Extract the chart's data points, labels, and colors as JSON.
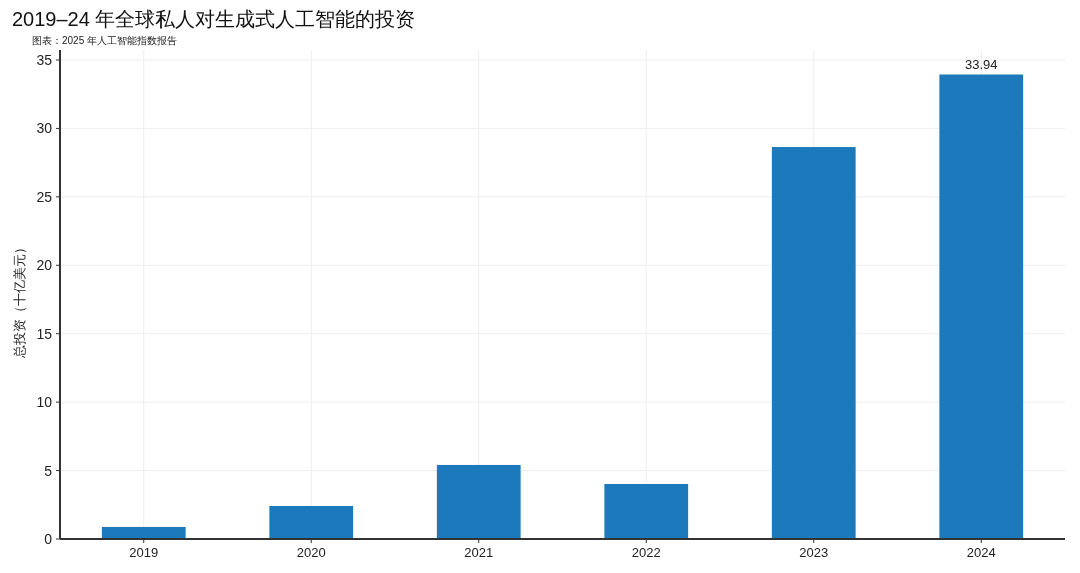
{
  "chart_data": {
    "type": "bar",
    "title": "2019–24 年全球私人对生成式人工智能的投资",
    "subtitle": "图表：2025 年人工智能指数报告",
    "ylabel": "总投资（十亿美元）",
    "categories": [
      "2019",
      "2020",
      "2021",
      "2022",
      "2023",
      "2024"
    ],
    "values": [
      0.88,
      2.41,
      5.41,
      4.02,
      28.64,
      33.94
    ],
    "value_labels": [
      null,
      null,
      null,
      null,
      null,
      "33.94"
    ],
    "color": "#1b79bc",
    "ylim": [
      0,
      35
    ],
    "yticks": [
      0,
      5,
      10,
      15,
      20,
      25,
      30,
      35
    ],
    "grid": true
  }
}
